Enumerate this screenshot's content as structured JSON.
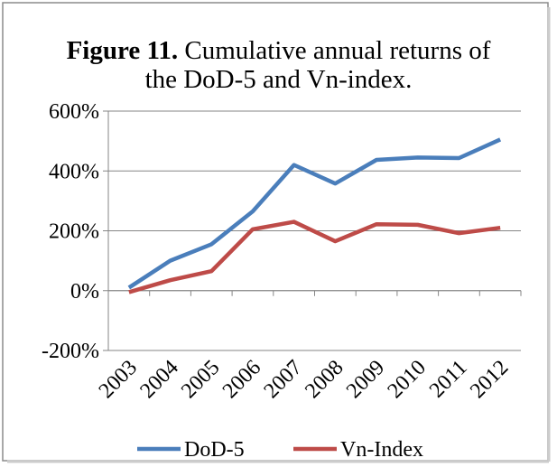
{
  "chart_data": {
    "type": "line",
    "title_label": "Figure 11.",
    "title": "Cumulative annual returns of the DoD-5 and Vn-index.",
    "categories": [
      "2003",
      "2004",
      "2005",
      "2006",
      "2007",
      "2008",
      "2009",
      "2010",
      "2011",
      "2012"
    ],
    "series": [
      {
        "name": "DoD-5",
        "color": "#4a7ebb",
        "values": [
          10,
          100,
          155,
          265,
          420,
          358,
          437,
          445,
          443,
          505
        ]
      },
      {
        "name": "Vn-Index",
        "color": "#be4b48",
        "values": [
          -5,
          35,
          65,
          205,
          230,
          165,
          222,
          220,
          192,
          210
        ]
      }
    ],
    "ylim": [
      -200,
      600
    ],
    "yticks": [
      {
        "value": -200,
        "label": "-200%"
      },
      {
        "value": 0,
        "label": "0%"
      },
      {
        "value": 200,
        "label": "200%"
      },
      {
        "value": 400,
        "label": "400%"
      },
      {
        "value": 600,
        "label": "600%"
      }
    ],
    "grid": true,
    "legend": "bottom"
  }
}
